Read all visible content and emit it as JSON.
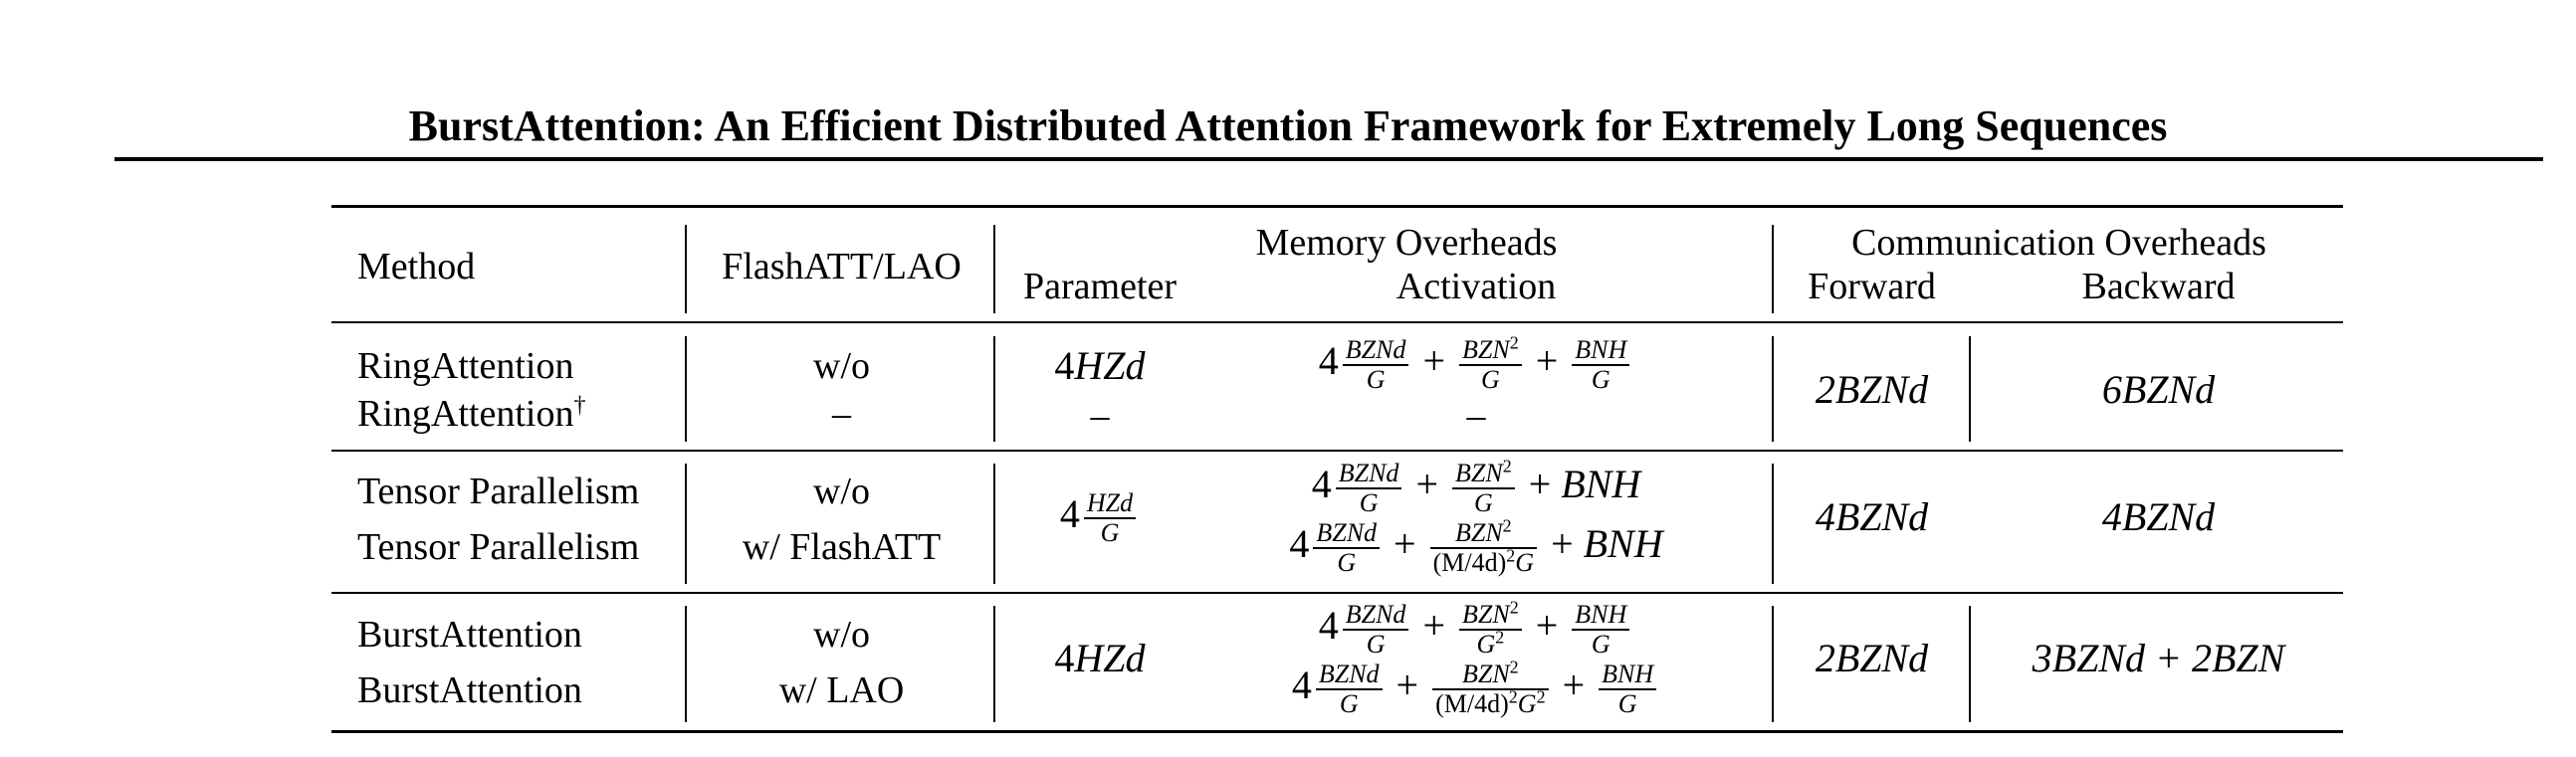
{
  "paper": {
    "title": "BurstAttention: An Efficient Distributed Attention Framework for Extremely Long Sequences"
  },
  "table": {
    "headers": {
      "method": "Method",
      "flash": "FlashATT/LAO",
      "memory_group": "Memory Overheads",
      "parameter": "Parameter",
      "activation": "Activation",
      "comm_group": "Communication Overheads",
      "forward": "Forward",
      "backward": "Backward"
    },
    "rows": [
      {
        "methods": [
          "RingAttention",
          "RingAttention"
        ],
        "method_marks": [
          "",
          "†"
        ],
        "flash": [
          "w/o",
          "–"
        ],
        "parameter": [
          "4HZd",
          "–"
        ],
        "activation": [
          "4 BZNd/G + BZN^2/G + BNH/G",
          "–"
        ],
        "forward": "2BZNd",
        "backward": "6BZNd"
      },
      {
        "methods": [
          "Tensor Parallelism",
          "Tensor Parallelism"
        ],
        "flash": [
          "w/o",
          "w/ FlashATT"
        ],
        "parameter": [
          "4 HZd/G"
        ],
        "activation": [
          "4 BZNd/G + BZN^2/G + BNH",
          "4 BZNd/G + BZN^2/(M/4d)^2G + BNH"
        ],
        "forward": "4BZNd",
        "backward": "4BZNd"
      },
      {
        "methods": [
          "BurstAttention",
          "BurstAttention"
        ],
        "flash": [
          "w/o",
          "w/ LAO"
        ],
        "parameter": [
          "4HZd"
        ],
        "activation": [
          "4 BZNd/G + BZN^2/G^2 + BNH/G",
          "4 BZNd/G + BZN^2/(M/4d)^2G^2 + BNH/G"
        ],
        "forward": "2BZNd",
        "backward": "3BZNd + 2BZN"
      }
    ],
    "fraction_parts": {
      "BZNd": "BZNd",
      "BZN": "BZN",
      "BNH": "BNH",
      "HZd": "HZd",
      "G": "G",
      "M4d": "(M/4d)",
      "four": "4",
      "plus": "+",
      "sq": "2"
    }
  }
}
